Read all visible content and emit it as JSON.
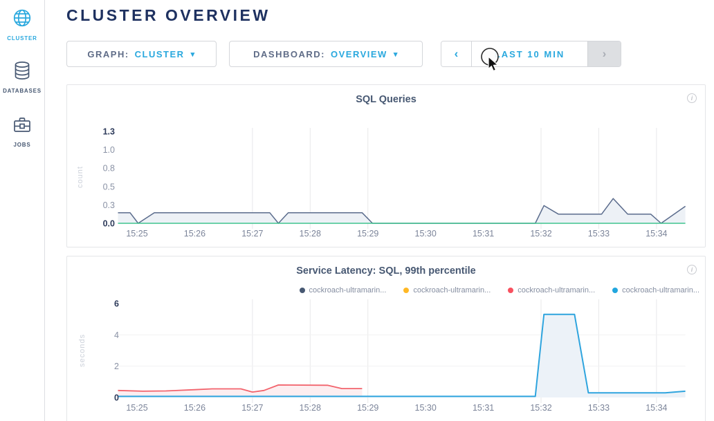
{
  "sidebar": {
    "items": [
      {
        "label": "CLUSTER",
        "icon": "globe-icon",
        "active": true
      },
      {
        "label": "DATABASES",
        "icon": "database-icon",
        "active": false
      },
      {
        "label": "JOBS",
        "icon": "briefcase-icon",
        "active": false
      }
    ]
  },
  "header": {
    "title": "CLUSTER OVERVIEW"
  },
  "controls": {
    "graph": {
      "label": "GRAPH:",
      "value": "CLUSTER",
      "caret": "▾"
    },
    "dashboard": {
      "label": "DASHBOARD:",
      "value": "OVERVIEW",
      "caret": "▾"
    },
    "timewindow": {
      "prev": "‹",
      "label": "LAST 10 MIN",
      "next": "›"
    }
  },
  "colors": {
    "accent_cyan": "#29a8de",
    "navy_title": "#1e3160",
    "slate_text": "#475872",
    "green_line": "#3ec48e",
    "red_line": "#f2636c",
    "blue_line": "#2ea4de",
    "yellow_line": "#d9a82c"
  },
  "chart_data": [
    {
      "id": "sql-queries",
      "type": "area",
      "title": "SQL Queries",
      "ylabel": "count",
      "xlabel": "",
      "x_unit": "decimal minutes after 15:00",
      "xlim": [
        24.67,
        34.5
      ],
      "ylim": [
        0,
        1.3
      ],
      "xticks": [
        {
          "t": 25,
          "label": "15:25"
        },
        {
          "t": 26,
          "label": "15:26"
        },
        {
          "t": 27,
          "label": "15:27"
        },
        {
          "t": 28,
          "label": "15:28"
        },
        {
          "t": 29,
          "label": "15:29"
        },
        {
          "t": 30,
          "label": "15:30"
        },
        {
          "t": 31,
          "label": "15:31"
        },
        {
          "t": 32,
          "label": "15:32"
        },
        {
          "t": 33,
          "label": "15:33"
        },
        {
          "t": 34,
          "label": "15:34"
        }
      ],
      "yticks": [
        {
          "v": 0,
          "label": "0.0",
          "strong": true
        },
        {
          "v": 0.26,
          "label": "0.3",
          "strong": false
        },
        {
          "v": 0.52,
          "label": "0.5",
          "strong": false
        },
        {
          "v": 0.78,
          "label": "0.8",
          "strong": false
        },
        {
          "v": 1.04,
          "label": "1.0",
          "strong": false
        },
        {
          "v": 1.3,
          "label": "1.3",
          "strong": true
        }
      ],
      "gridlines_x": [
        27,
        28,
        29,
        32,
        33,
        34
      ],
      "gridlines_y": [],
      "series": [
        {
          "name": "queries-navy",
          "color": "#5a6b8c",
          "fill": "#edf1f6",
          "width": 1.5,
          "points": [
            [
              24.67,
              0.15
            ],
            [
              24.88,
              0.15
            ],
            [
              25.02,
              0
            ],
            [
              25.3,
              0.15
            ],
            [
              27.3,
              0.15
            ],
            [
              27.45,
              0
            ],
            [
              27.62,
              0.15
            ],
            [
              28.9,
              0.15
            ],
            [
              29.08,
              0
            ],
            [
              31.9,
              0
            ],
            [
              32.05,
              0.25
            ],
            [
              32.3,
              0.13
            ],
            [
              33.05,
              0.13
            ],
            [
              33.25,
              0.35
            ],
            [
              33.5,
              0.13
            ],
            [
              33.9,
              0.13
            ],
            [
              34.08,
              0
            ],
            [
              34.5,
              0.24
            ]
          ]
        },
        {
          "name": "queries-green-zero",
          "color": "#3ec48e",
          "fill": null,
          "width": 1.5,
          "points": [
            [
              24.67,
              0
            ],
            [
              34.5,
              0
            ]
          ]
        }
      ]
    },
    {
      "id": "service-latency",
      "type": "area",
      "title": "Service Latency: SQL, 99th percentile",
      "ylabel": "seconds",
      "xlabel": "",
      "x_unit": "decimal minutes after 15:00",
      "xlim": [
        24.67,
        34.5
      ],
      "ylim": [
        0,
        6
      ],
      "legend": [
        {
          "label": "cockroach-ultramarin...",
          "color": "#475872"
        },
        {
          "label": "cockroach-ultramarin...",
          "color": "#ffb825"
        },
        {
          "label": "cockroach-ultramarin...",
          "color": "#f8515f"
        },
        {
          "label": "cockroach-ultramarin...",
          "color": "#21a6de"
        }
      ],
      "xticks": [
        {
          "t": 25,
          "label": "15:25"
        },
        {
          "t": 26,
          "label": "15:26"
        },
        {
          "t": 27,
          "label": "15:27"
        },
        {
          "t": 28,
          "label": "15:28"
        },
        {
          "t": 29,
          "label": "15:29"
        },
        {
          "t": 30,
          "label": "15:30"
        },
        {
          "t": 31,
          "label": "15:31"
        },
        {
          "t": 32,
          "label": "15:32"
        },
        {
          "t": 33,
          "label": "15:33"
        },
        {
          "t": 34,
          "label": "15:34"
        }
      ],
      "yticks": [
        {
          "v": 0,
          "label": "0",
          "strong": true
        },
        {
          "v": 2,
          "label": "2",
          "strong": false
        },
        {
          "v": 4,
          "label": "4",
          "strong": false
        },
        {
          "v": 6,
          "label": "6",
          "strong": true
        }
      ],
      "gridlines_x": [
        27,
        28,
        29,
        32,
        33,
        34
      ],
      "gridlines_y": [
        2,
        4
      ],
      "series": [
        {
          "name": "node-red",
          "color": "#f2636c",
          "fill": "#fdeef0",
          "width": 1.8,
          "points": [
            [
              24.67,
              0.45
            ],
            [
              25.1,
              0.4
            ],
            [
              25.5,
              0.42
            ],
            [
              26.0,
              0.5
            ],
            [
              26.3,
              0.55
            ],
            [
              26.8,
              0.55
            ],
            [
              27.0,
              0.35
            ],
            [
              27.2,
              0.45
            ],
            [
              27.45,
              0.8
            ],
            [
              28.3,
              0.78
            ],
            [
              28.55,
              0.57
            ],
            [
              28.9,
              0.57
            ]
          ]
        },
        {
          "name": "node-yellow",
          "color": "#d9a82c",
          "fill": null,
          "width": 1.5,
          "points": [
            [
              31.95,
              0.05
            ],
            [
              34.4,
              0.05
            ]
          ]
        },
        {
          "name": "node-blue",
          "color": "#2ea4de",
          "fill": "#ecf2f8",
          "width": 2,
          "points": [
            [
              24.67,
              0.07
            ],
            [
              31.9,
              0.07
            ],
            [
              32.05,
              5.3
            ],
            [
              32.58,
              5.3
            ],
            [
              32.82,
              0.3
            ],
            [
              34.15,
              0.3
            ],
            [
              34.5,
              0.4
            ]
          ]
        },
        {
          "name": "node-slate",
          "color": "#475872",
          "fill": null,
          "width": 1.5,
          "points": []
        }
      ]
    }
  ]
}
